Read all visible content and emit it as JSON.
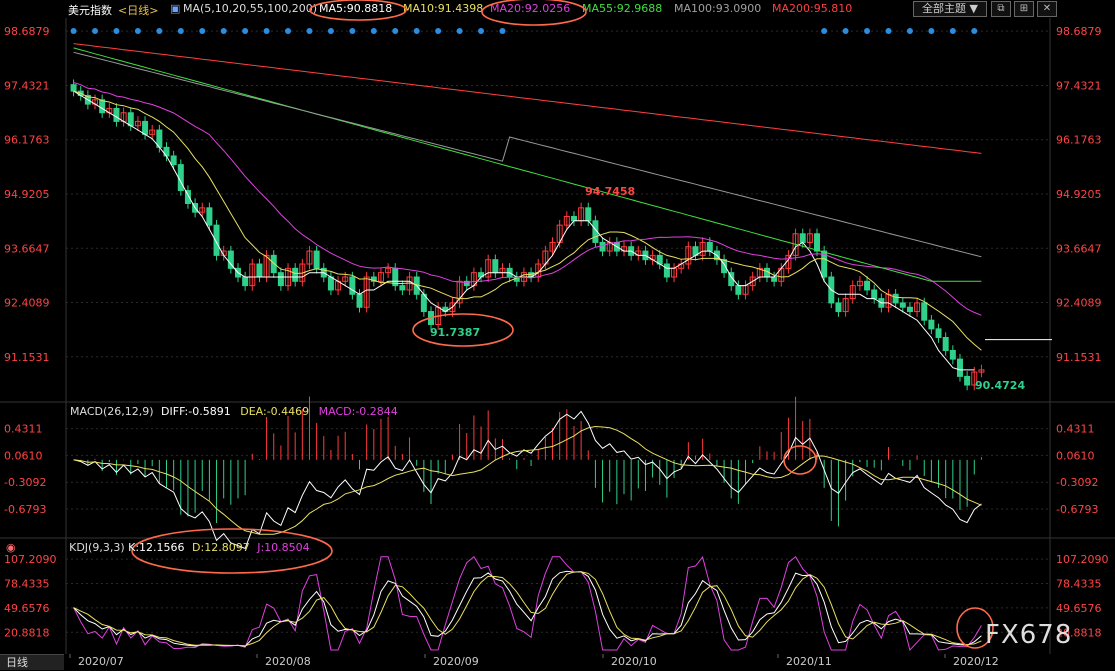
{
  "header": {
    "symbol": "美元指数",
    "period": "<日线>",
    "ma_params": "MA(5,10,20,55,100,200)",
    "ma_values": [
      {
        "label": "MA5:90.8818",
        "color": "#ffffff"
      },
      {
        "label": "MA10:91.4398",
        "color": "#e8e060"
      },
      {
        "label": "MA20:92.0256",
        "color": "#e040e0"
      },
      {
        "label": "MA55:92.9688",
        "color": "#40e040"
      },
      {
        "label": "MA100:93.0900",
        "color": "#a0a0a0"
      },
      {
        "label": "MA200:95.810",
        "color": "#ff4040"
      }
    ],
    "theme_button": "全部主题",
    "theme_arrow": "▼"
  },
  "macd_header": {
    "params": "MACD(26,12,9)",
    "diff": "DIFF:-0.5891",
    "dea": "DEA:-0.4469",
    "macd": "MACD:-0.2844"
  },
  "kdj_header": {
    "params": "KDJ(9,3,3)",
    "k": "K:12.1566",
    "d": "D:12.8097",
    "j": "J:10.8504"
  },
  "bottom_tab": "日线",
  "watermark": "FX678",
  "colors": {
    "up": "#ff3b3b",
    "down": "#2fd08a",
    "annot": "#ff6a4a",
    "grid": "#2a2a2a",
    "axis_text": "#ff4444"
  },
  "chart_data": {
    "type": "candlestick",
    "x_labels": [
      "2020/07",
      "2020/08",
      "2020/09",
      "2020/10",
      "2020/11",
      "2020/12"
    ],
    "price_axis": [
      "98.6879",
      "97.4321",
      "96.1763",
      "94.9205",
      "93.6647",
      "92.4089",
      "91.1531"
    ],
    "price_range": [
      90.2,
      98.9
    ],
    "high_label": "94.7458",
    "low_label_1": "91.7387",
    "low_label_2": "90.4724",
    "last_close": 90.85,
    "closes": [
      97.3,
      97.2,
      97.0,
      97.1,
      96.8,
      96.9,
      96.6,
      96.8,
      96.5,
      96.6,
      96.3,
      96.4,
      96.0,
      95.8,
      95.6,
      95.0,
      94.7,
      94.5,
      94.6,
      94.2,
      93.5,
      93.6,
      93.2,
      93.0,
      92.8,
      93.3,
      93.0,
      93.5,
      93.1,
      92.8,
      93.2,
      92.9,
      93.3,
      93.6,
      93.2,
      93.0,
      92.7,
      92.9,
      93.0,
      92.6,
      92.3,
      93.0,
      92.9,
      93.1,
      93.2,
      92.8,
      92.7,
      93.0,
      92.6,
      92.2,
      91.9,
      92.3,
      92.2,
      92.4,
      92.9,
      92.8,
      93.1,
      93.0,
      93.4,
      93.1,
      93.2,
      93.0,
      92.9,
      93.1,
      93.0,
      93.3,
      93.6,
      93.8,
      94.2,
      94.4,
      94.3,
      94.6,
      94.3,
      93.8,
      93.6,
      93.8,
      93.6,
      93.7,
      93.5,
      93.6,
      93.4,
      93.5,
      93.3,
      93.0,
      93.2,
      93.3,
      93.7,
      93.5,
      93.8,
      93.6,
      93.4,
      93.1,
      92.8,
      92.6,
      92.8,
      93.0,
      93.2,
      93.0,
      92.9,
      93.2,
      93.5,
      94.0,
      93.8,
      94.0,
      93.6,
      93.0,
      92.4,
      92.2,
      92.5,
      92.8,
      92.9,
      92.7,
      92.5,
      92.3,
      92.6,
      92.4,
      92.3,
      92.2,
      92.4,
      92.0,
      91.8,
      91.6,
      91.3,
      91.1,
      90.7,
      90.5,
      90.8,
      90.85
    ],
    "ma5": [
      97.3,
      97.2,
      97.1,
      97.0,
      96.9,
      96.8,
      96.7,
      96.6,
      96.5,
      96.4,
      96.3,
      96.2,
      96.0,
      95.8,
      95.5,
      95.2,
      94.9,
      94.6,
      94.4,
      94.1,
      93.8,
      93.5,
      93.3,
      93.1,
      93.0,
      93.0,
      93.0,
      93.0,
      93.0,
      93.0,
      93.0,
      93.0,
      93.0,
      93.1,
      93.1,
      93.1,
      93.0,
      92.9,
      92.8,
      92.7,
      92.6,
      92.7,
      92.7,
      92.8,
      92.9,
      92.9,
      92.9,
      92.9,
      92.8,
      92.6,
      92.4,
      92.3,
      92.2,
      92.3,
      92.5,
      92.7,
      92.8,
      93.0,
      93.1,
      93.1,
      93.1,
      93.1,
      93.0,
      93.0,
      93.0,
      93.1,
      93.3,
      93.5,
      93.8,
      94.1,
      94.3,
      94.3,
      94.3,
      94.1,
      93.9,
      93.8,
      93.7,
      93.6,
      93.6,
      93.5,
      93.5,
      93.4,
      93.3,
      93.2,
      93.2,
      93.3,
      93.4,
      93.5,
      93.6,
      93.6,
      93.5,
      93.3,
      93.0,
      92.8,
      92.8,
      92.9,
      93.0,
      93.0,
      93.0,
      93.2,
      93.4,
      93.7,
      93.8,
      93.6,
      93.3,
      92.9,
      92.7,
      92.6,
      92.6,
      92.6,
      92.6,
      92.5,
      92.5,
      92.4,
      92.4,
      92.3,
      92.2,
      92.1,
      92.0,
      91.8,
      91.6,
      91.3,
      91.1,
      90.9,
      90.85,
      90.85,
      90.85
    ]
  }
}
